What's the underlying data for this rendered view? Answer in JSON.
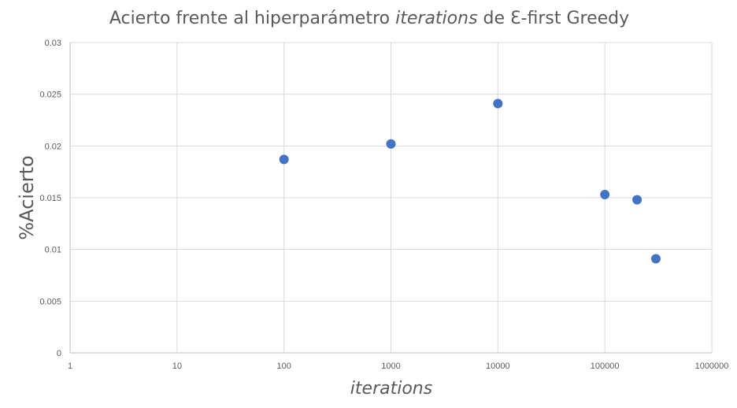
{
  "chart_data": {
    "type": "scatter",
    "title": {
      "prefix": "Acierto frente al hiperparámetro ",
      "emphasis": "iterations",
      "suffix": " de Ɛ-first Greedy"
    },
    "xlabel": "iterations",
    "ylabel": "%Acierto",
    "x_scale": "log",
    "xlim": [
      1,
      1000000
    ],
    "ylim": [
      0,
      0.03
    ],
    "x_ticks": [
      1,
      10,
      100,
      1000,
      10000,
      100000,
      1000000
    ],
    "x_tick_labels": [
      "1",
      "10",
      "100",
      "1000",
      "10000",
      "100000",
      "1000000"
    ],
    "y_ticks": [
      0,
      0.005,
      0.01,
      0.015,
      0.02,
      0.025,
      0.03
    ],
    "y_tick_labels": [
      "0",
      "0.005",
      "0.01",
      "0.015",
      "0.02",
      "0.025",
      "0.03"
    ],
    "grid": true,
    "legend": "none",
    "marker_color": "#4472c4",
    "points": [
      {
        "x": 100,
        "y": 0.0187
      },
      {
        "x": 1000,
        "y": 0.0202
      },
      {
        "x": 10000,
        "y": 0.0241
      },
      {
        "x": 100000,
        "y": 0.0153
      },
      {
        "x": 200000,
        "y": 0.0148
      },
      {
        "x": 300000,
        "y": 0.0091
      }
    ]
  }
}
